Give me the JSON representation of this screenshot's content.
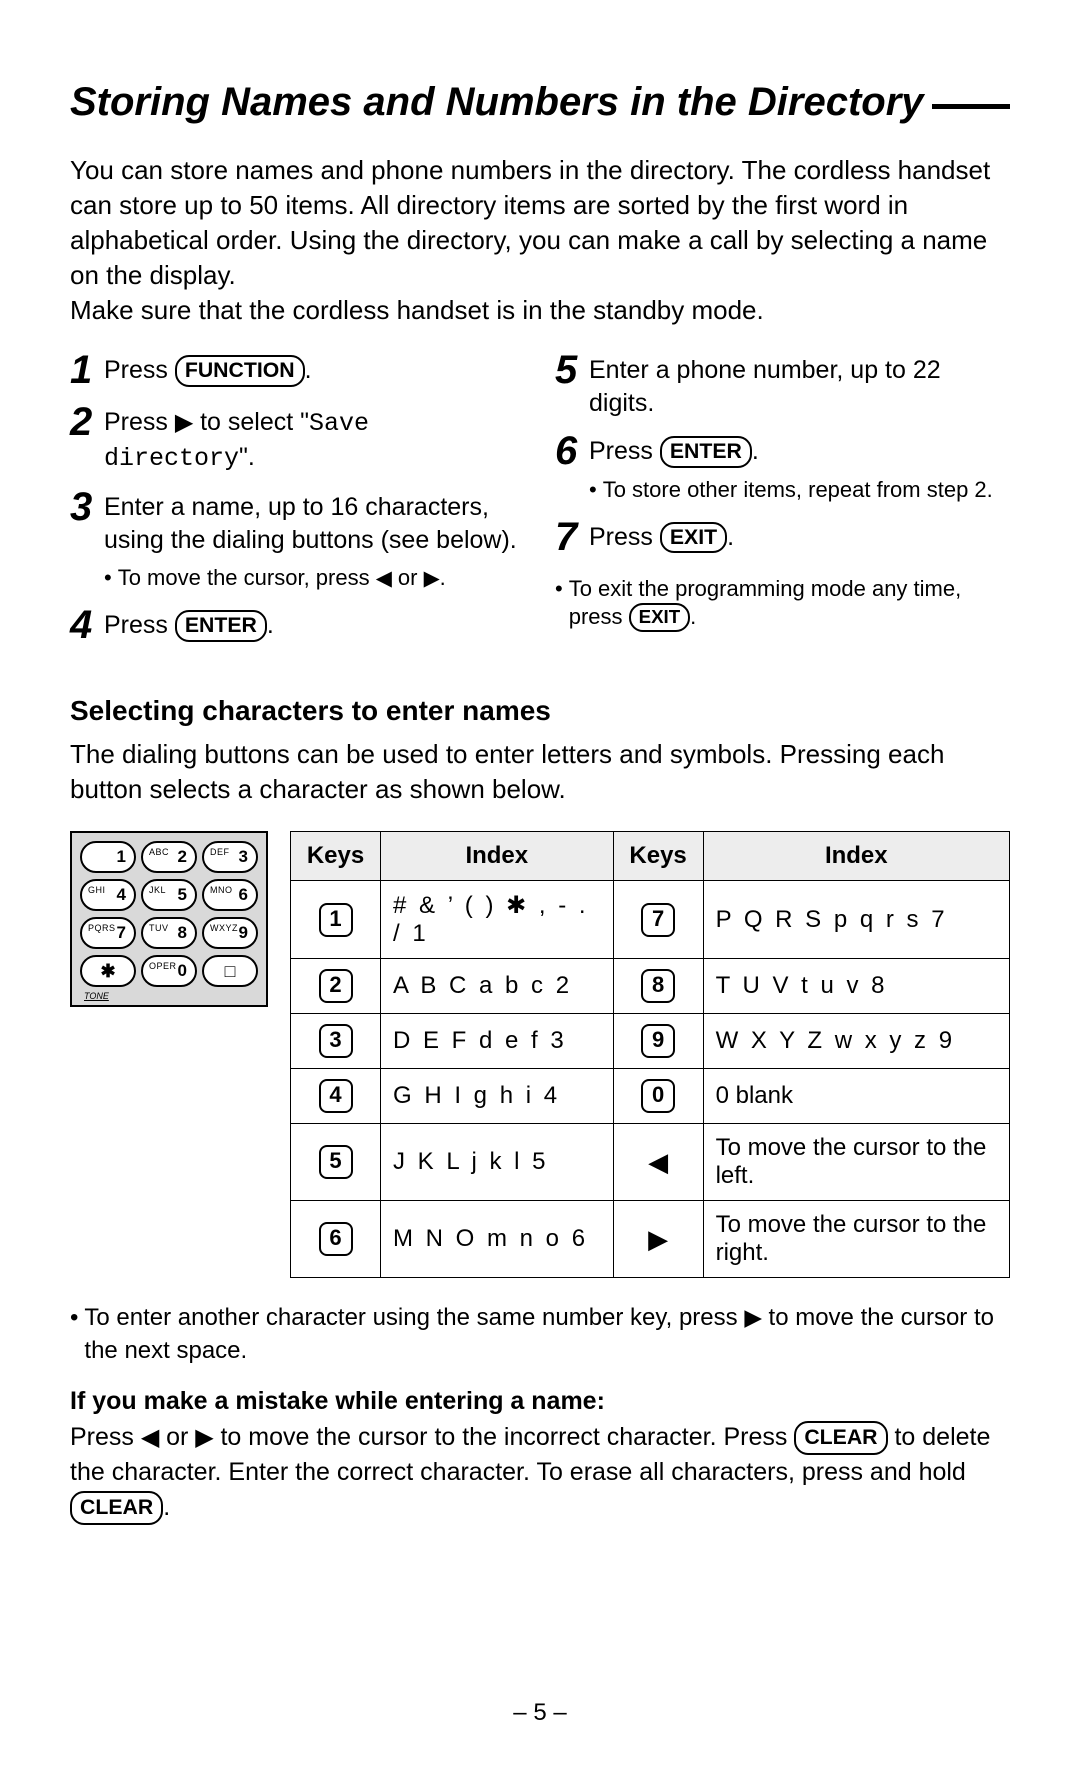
{
  "title": "Storing Names and Numbers in the Directory",
  "intro_p1": "You can store names and phone numbers in the directory. The cordless handset can store up to 50 items. All directory items are sorted by the first word in alphabetical order. Using the directory, you can make a call by selecting a name on the display.",
  "intro_p2": "Make sure that the cordless handset is in the standby mode.",
  "steps_left": [
    {
      "n": "1",
      "pre": "Press ",
      "key": "FUNCTION",
      "post": "."
    },
    {
      "n": "2",
      "pre": "Press ",
      "arrow": "▶",
      "mid": " to select \"",
      "mono": "Save directory",
      "post": "\"."
    },
    {
      "n": "3",
      "text": "Enter a name, up to 16 characters, using the dialing buttons (see below).",
      "sub": {
        "pre": "To move the cursor, press ",
        "a1": "◀",
        "mid": " or ",
        "a2": "▶",
        "post": "."
      }
    },
    {
      "n": "4",
      "pre": "Press ",
      "key": "ENTER",
      "post": "."
    }
  ],
  "steps_right": [
    {
      "n": "5",
      "text": "Enter a phone number, up to 22 digits."
    },
    {
      "n": "6",
      "pre": "Press ",
      "key": "ENTER",
      "post": ".",
      "sub": {
        "text": "To store other items, repeat from step 2."
      }
    },
    {
      "n": "7",
      "pre": "Press ",
      "key": "EXIT",
      "post": "."
    }
  ],
  "exit_note": {
    "pre": "To exit the programming mode any time, press ",
    "key": "EXIT",
    "post": "."
  },
  "section2_head": "Selecting characters to enter names",
  "section2_body": "The dialing buttons can be used to enter letters and symbols. Pressing each button selects a character as shown below.",
  "keypad": {
    "rows": [
      [
        {
          "sup": "",
          "main": "1"
        },
        {
          "sup": "ABC",
          "main": "2"
        },
        {
          "sup": "DEF",
          "main": "3"
        }
      ],
      [
        {
          "sup": "GHI",
          "main": "4"
        },
        {
          "sup": "JKL",
          "main": "5"
        },
        {
          "sup": "MNO",
          "main": "6"
        }
      ],
      [
        {
          "sup": "PQRS",
          "main": "7"
        },
        {
          "sup": "TUV",
          "main": "8"
        },
        {
          "sup": "WXYZ",
          "main": "9"
        }
      ],
      [
        {
          "sup": "",
          "main": "✱",
          "center": true
        },
        {
          "sup": "OPER",
          "main": "0"
        },
        {
          "sup": "",
          "main": "□",
          "center": true
        }
      ]
    ],
    "tone": "TONE"
  },
  "table": {
    "headers": [
      "Keys",
      "Index",
      "Keys",
      "Index"
    ],
    "rows": [
      {
        "k1": "1",
        "i1": "# & ’ ( ) ✱ , - . / 1",
        "k2": "7",
        "i2": "P Q R S p q r s 7"
      },
      {
        "k1": "2",
        "i1": "A B C a b c 2",
        "k2": "8",
        "i2": "T U V t u v 8"
      },
      {
        "k1": "3",
        "i1": "D E F d e f 3",
        "k2": "9",
        "i2": "W X Y Z w x y z 9"
      },
      {
        "k1": "4",
        "i1": "G H I g h i 4",
        "k2": "0",
        "i2": "0 blank",
        "i2tight": true
      },
      {
        "k1": "5",
        "i1": "J K L j k l 5",
        "k2": "◀",
        "k2arrow": true,
        "i2": "To move the cursor to the left.",
        "i2tight": true
      },
      {
        "k1": "6",
        "i1": "M N O m n o 6",
        "k2": "▶",
        "k2arrow": true,
        "i2": "To move the cursor to the right.",
        "i2tight": true
      }
    ]
  },
  "foot_bullet": {
    "pre": "To enter another character using the same number key, press ",
    "arrow": "▶",
    "post": " to move the cursor to the next space."
  },
  "mistake_head": "If you make a mistake while entering a name:",
  "mistake": {
    "t1": "Press ",
    "a1": "◀",
    "t2": " or ",
    "a2": "▶",
    "t3": " to move the cursor to the incorrect character. Press ",
    "k1": "CLEAR",
    "t4": " to delete the character. Enter the correct character. To erase all characters, press and hold ",
    "k2": "CLEAR",
    "t5": "."
  },
  "page_num": "– 5 –",
  "colors": {
    "text": "#000000",
    "bg": "#ffffff",
    "border": "#000000",
    "th_bg": "#ededed",
    "keypad_bg": "#d9d9d9"
  }
}
